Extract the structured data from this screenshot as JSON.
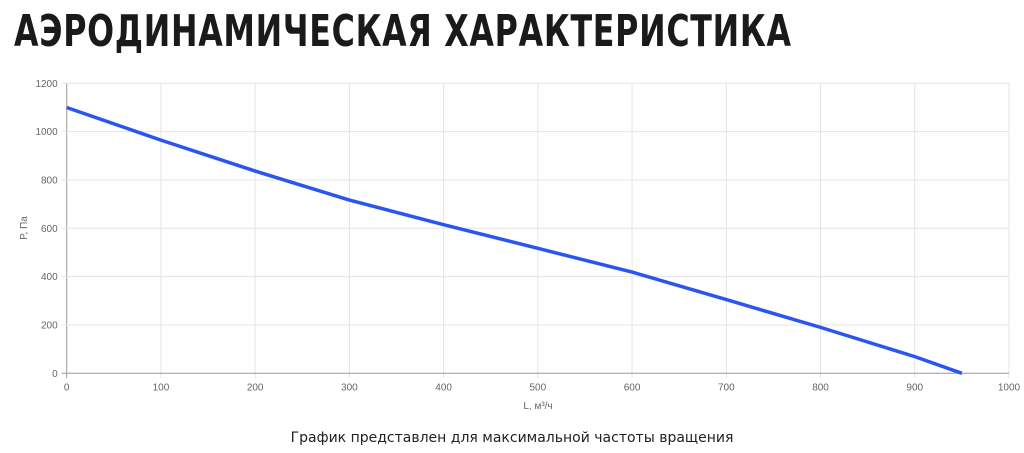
{
  "title": "АЭРОДИНАМИЧЕСКАЯ ХАРАКТЕРИСТИКА",
  "caption": "График представлен для максимальной частоты вращения",
  "chart_data": {
    "type": "line",
    "xlabel": "L, м³/ч",
    "ylabel": "P, Па",
    "xlim": [
      0,
      1000
    ],
    "ylim": [
      0,
      1200
    ],
    "xticks": [
      0,
      100,
      200,
      300,
      400,
      500,
      600,
      700,
      800,
      900,
      1000
    ],
    "yticks": [
      0,
      200,
      400,
      600,
      800,
      1000,
      1200
    ],
    "grid": true,
    "color": "#2b55f0",
    "x": [
      0,
      100,
      200,
      300,
      400,
      500,
      600,
      700,
      800,
      900,
      950
    ],
    "y": [
      1100,
      965,
      837,
      717,
      615,
      517,
      419,
      305,
      190,
      69,
      0
    ]
  }
}
